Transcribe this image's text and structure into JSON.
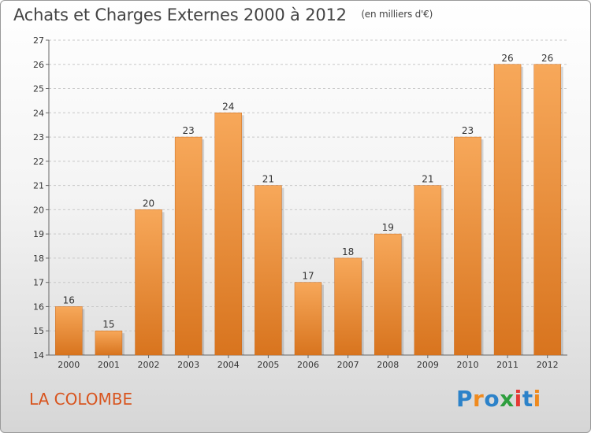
{
  "title": "Achats et Charges Externes 2000 à 2012",
  "unit": "(en milliers d'€)",
  "commune": "LA COLOMBE",
  "logo": {
    "p1": "P",
    "p2": "r",
    "p3": "o",
    "p4": "x",
    "p5": "i",
    "p6": "t",
    "p7": "i"
  },
  "colors": {
    "bar_light": "#f7a85a",
    "bar_dark": "#d8741e",
    "commune": "#d8541e"
  },
  "chart_data": {
    "type": "bar",
    "title": "Achats et Charges Externes 2000 à 2012",
    "subtitle": "(en milliers d'€)",
    "xlabel": "",
    "ylabel": "",
    "categories": [
      "2000",
      "2001",
      "2002",
      "2003",
      "2004",
      "2005",
      "2006",
      "2007",
      "2008",
      "2009",
      "2010",
      "2011",
      "2012"
    ],
    "values": [
      16,
      15,
      20,
      23,
      24,
      21,
      17,
      18,
      19,
      21,
      23,
      26,
      26
    ],
    "ylim": [
      14,
      27
    ],
    "yticks": [
      14,
      15,
      16,
      17,
      18,
      19,
      20,
      21,
      22,
      23,
      24,
      25,
      26,
      27
    ],
    "grid": true
  }
}
